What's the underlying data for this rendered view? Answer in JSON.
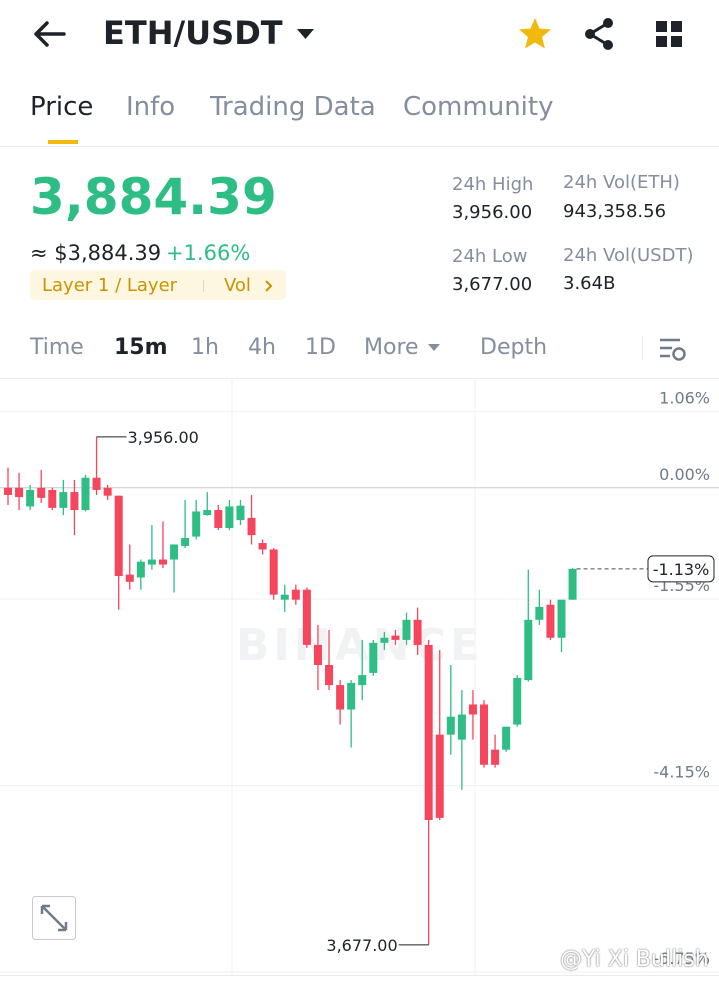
{
  "header": {
    "pair": "ETH/USDT"
  },
  "tabs": [
    "Price",
    "Info",
    "Trading Data",
    "Community"
  ],
  "price": {
    "last": "3,884.39",
    "fiat": "≈ $3,884.39",
    "change": "+1.66%",
    "tag": "Layer 1 / Layer",
    "tag_link": "Vol"
  },
  "stats": [
    {
      "label": "24h High",
      "value": "3,956.00"
    },
    {
      "label": "24h Vol(ETH)",
      "value": "943,358.56"
    },
    {
      "label": "24h Low",
      "value": "3,677.00"
    },
    {
      "label": "24h Vol(USDT)",
      "value": "3.64B"
    }
  ],
  "intervals": [
    "Time",
    "15m",
    "1h",
    "4h",
    "1D",
    "More",
    "Depth"
  ],
  "chart_data": {
    "type": "candlestick",
    "ylim": [
      -6.79,
      1.53
    ],
    "yticks": [
      {
        "value": 1.06,
        "label": "1.06%"
      },
      {
        "value": 0,
        "label": "0.00%"
      },
      {
        "value": -1.55,
        "label": "-1.55%"
      },
      {
        "value": -4.15,
        "label": "-4.15%"
      },
      {
        "value": -6.75,
        "label": "-6.75%"
      }
    ],
    "grid": true,
    "up_color": "#2ebd85",
    "down_color": "#f6465d",
    "open": [
      0.0,
      0.0,
      -0.26,
      0.0,
      -0.03,
      -0.28,
      -0.06,
      -0.31,
      0.14,
      0.0,
      -0.11,
      -1.21,
      -1.25,
      -1.07,
      -1.0,
      -1.0,
      -0.81,
      -0.68,
      -0.38,
      -0.31,
      -0.56,
      -0.45,
      -0.42,
      -0.77,
      -0.86,
      -1.56,
      -1.42,
      -1.42,
      -2.19,
      -2.47,
      -2.75,
      -3.09,
      -2.75,
      -2.58,
      -2.16,
      -2.06,
      -2.12,
      -1.84,
      -2.19,
      -3.44,
      -3.44,
      -3.51,
      -3.02,
      -3.02,
      -3.65,
      -3.65,
      -3.3,
      -2.68,
      -1.84,
      -1.63,
      -2.09,
      -1.56
    ],
    "high": [
      0.28,
      0.21,
      0.04,
      0.25,
      0.0,
      0.11,
      0.11,
      0.18,
      0.71,
      0.04,
      -0.11,
      -0.79,
      -1.0,
      -0.52,
      -0.47,
      -0.79,
      -0.17,
      -0.17,
      -0.06,
      -0.24,
      -0.17,
      -0.17,
      -0.1,
      -0.72,
      -0.84,
      -1.35,
      -1.35,
      -1.39,
      -1.91,
      -1.98,
      -2.68,
      -2.68,
      -2.12,
      -2.12,
      -2.01,
      -1.98,
      -1.74,
      -1.67,
      -2.12,
      -2.26,
      -2.47,
      -2.82,
      -2.82,
      -2.96,
      -3.44,
      -3.33,
      -2.61,
      -1.14,
      -1.42,
      -1.56,
      -1.56,
      -1.12
    ],
    "low": [
      -0.24,
      -0.31,
      -0.31,
      -0.21,
      -0.31,
      -0.38,
      -0.66,
      -0.33,
      -0.1,
      -0.17,
      -1.7,
      -1.42,
      -1.42,
      -1.14,
      -1.12,
      -1.46,
      -0.84,
      -0.72,
      -0.39,
      -0.59,
      -0.59,
      -0.52,
      -0.79,
      -0.93,
      -1.56,
      -1.73,
      -1.63,
      -2.23,
      -2.82,
      -2.82,
      -3.3,
      -3.62,
      -2.96,
      -2.62,
      -2.26,
      -2.19,
      -2.19,
      -2.33,
      -6.37,
      -4.63,
      -3.72,
      -4.21,
      -3.51,
      -3.9,
      -3.9,
      -3.68,
      -3.33,
      -2.7,
      -1.91,
      -2.12,
      -2.29,
      -1.56
    ],
    "close": [
      -0.1,
      -0.13,
      -0.03,
      -0.14,
      -0.28,
      -0.06,
      -0.31,
      0.14,
      -0.03,
      -0.11,
      -1.23,
      -1.31,
      -1.03,
      -1.0,
      -1.07,
      -0.79,
      -0.7,
      -0.33,
      -0.31,
      -0.56,
      -0.26,
      -0.25,
      -0.66,
      -0.86,
      -1.49,
      -1.49,
      -1.56,
      -2.19,
      -2.47,
      -2.75,
      -3.09,
      -2.72,
      -2.61,
      -2.16,
      -2.09,
      -2.12,
      -1.84,
      -2.19,
      -4.63,
      -4.6,
      -3.19,
      -3.16,
      -3.16,
      -3.86,
      -3.86,
      -3.33,
      -2.65,
      -1.84,
      -1.66,
      -2.09,
      -1.56,
      -1.13
    ],
    "high_label": "3,956.00",
    "low_label": "3,677.00",
    "last": {
      "value": -1.13,
      "label": "-1.13%"
    },
    "watermark": "BINANCE"
  },
  "credit": "@Yi Xi Bullish"
}
